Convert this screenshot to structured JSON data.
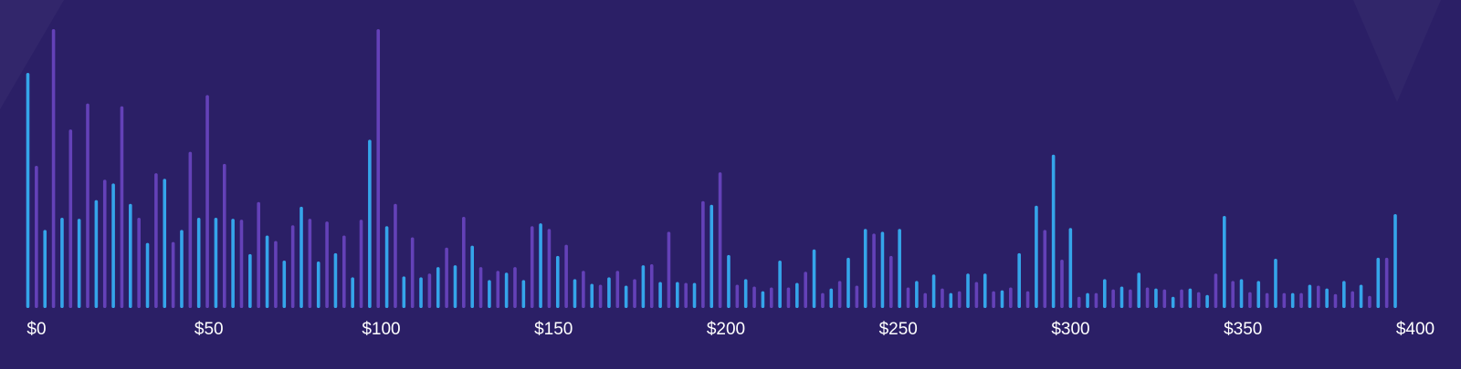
{
  "chart_data": {
    "type": "bar",
    "title": "",
    "xlabel": "",
    "ylabel": "",
    "x_tick_labels": [
      "$0",
      "$50",
      "$100",
      "$150",
      "$200",
      "$250",
      "$300",
      "$350",
      "$400"
    ],
    "x_ticks": [
      0,
      50,
      100,
      150,
      200,
      250,
      300,
      350,
      400
    ],
    "xlim": [
      0,
      400
    ],
    "ylim": [
      0,
      300
    ],
    "grid": false,
    "legend": "none",
    "colors": {
      "primary": "#35a5ea",
      "secondary": "#6441b8",
      "background": "#2b1f66",
      "text": "#ffffff"
    },
    "values": [
      253,
      153,
      84,
      300,
      97,
      192,
      96,
      220,
      116,
      138,
      134,
      217,
      112,
      97,
      70,
      145,
      139,
      71,
      84,
      168,
      97,
      229,
      97,
      155,
      96,
      95,
      58,
      114,
      78,
      72,
      51,
      89,
      109,
      96,
      50,
      93,
      59,
      78,
      33,
      95,
      181,
      300,
      88,
      112,
      34,
      76,
      33,
      37,
      44,
      65,
      46,
      98,
      67,
      44,
      30,
      40,
      38,
      44,
      30,
      88,
      91,
      85,
      56,
      68,
      31,
      40,
      26,
      25,
      33,
      40,
      24,
      31,
      46,
      47,
      28,
      82,
      28,
      27,
      27,
      115,
      111,
      146,
      57,
      25,
      31,
      23,
      18,
      22,
      51,
      22,
      27,
      39,
      63,
      16,
      21,
      29,
      54,
      24,
      85,
      80,
      82,
      56,
      85,
      22,
      29,
      16,
      36,
      21,
      16,
      18,
      37,
      28,
      37,
      18,
      19,
      22,
      59,
      18,
      110,
      84,
      165,
      52,
      86,
      12,
      16,
      16,
      31,
      20,
      23,
      20,
      38,
      22,
      21,
      20,
      12,
      20,
      21,
      17,
      14,
      37,
      99,
      29,
      31,
      17,
      29,
      16,
      53,
      16,
      16,
      16,
      25,
      24,
      21,
      15,
      29,
      18,
      25,
      13,
      54,
      54,
      101
    ]
  }
}
